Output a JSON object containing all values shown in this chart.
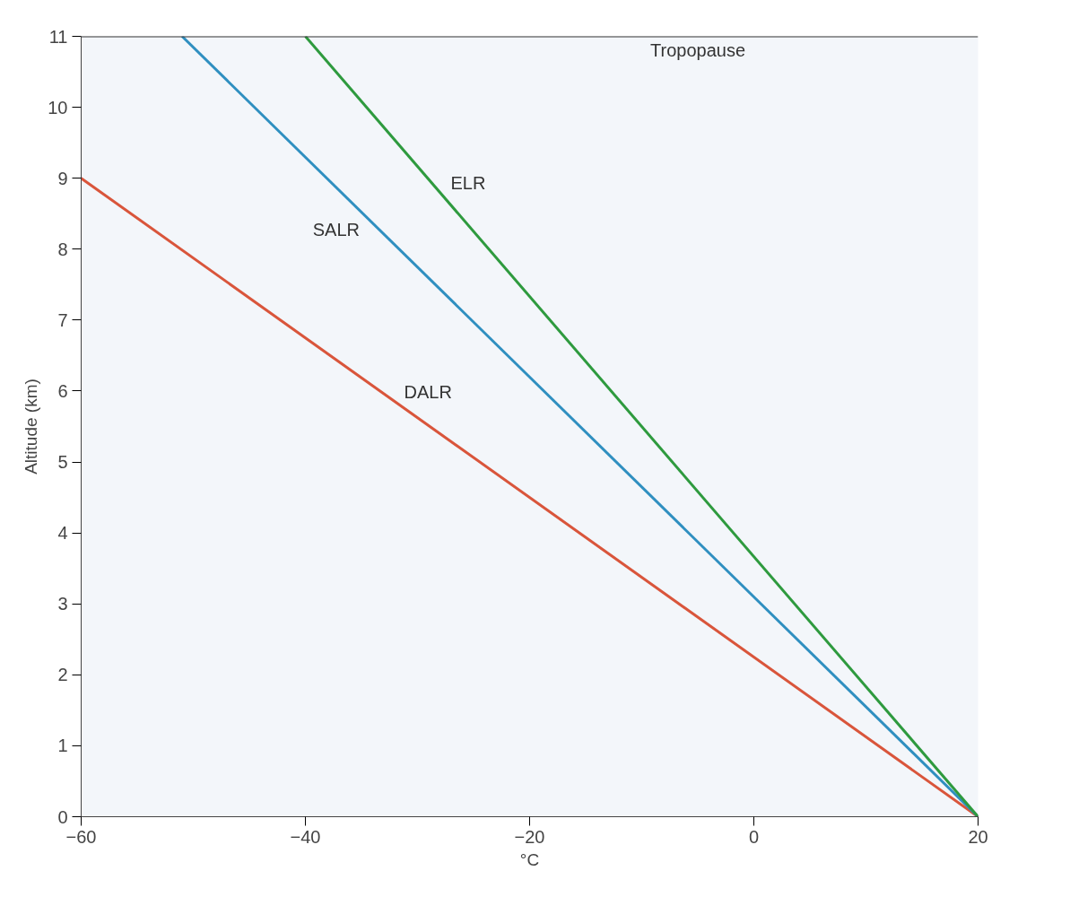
{
  "chart_data": {
    "type": "line",
    "xlabel": "°C",
    "ylabel": "Altitude (km)",
    "xlim": [
      -60,
      20
    ],
    "xticks": [
      -60,
      -40,
      -20,
      0,
      20
    ],
    "ylim": [
      0,
      11
    ],
    "yticks": [
      0,
      1,
      2,
      3,
      4,
      5,
      6,
      7,
      8,
      9,
      10,
      11
    ],
    "grid": false,
    "legend": false,
    "series": [
      {
        "name": "DALR",
        "color": "#d9553b",
        "x": [
          20,
          -60
        ],
        "values": [
          0,
          9
        ]
      },
      {
        "name": "SALR",
        "color": "#2f8fc0",
        "x": [
          20,
          -51
        ],
        "values": [
          0,
          11
        ]
      },
      {
        "name": "ELR",
        "color": "#2e9a3e",
        "x": [
          20,
          -40
        ],
        "values": [
          0,
          11
        ]
      }
    ],
    "ref_lines": [
      {
        "axis": "y",
        "value": 11,
        "label": "Tropopause",
        "color": "#333333",
        "line_style": "solid"
      }
    ]
  }
}
